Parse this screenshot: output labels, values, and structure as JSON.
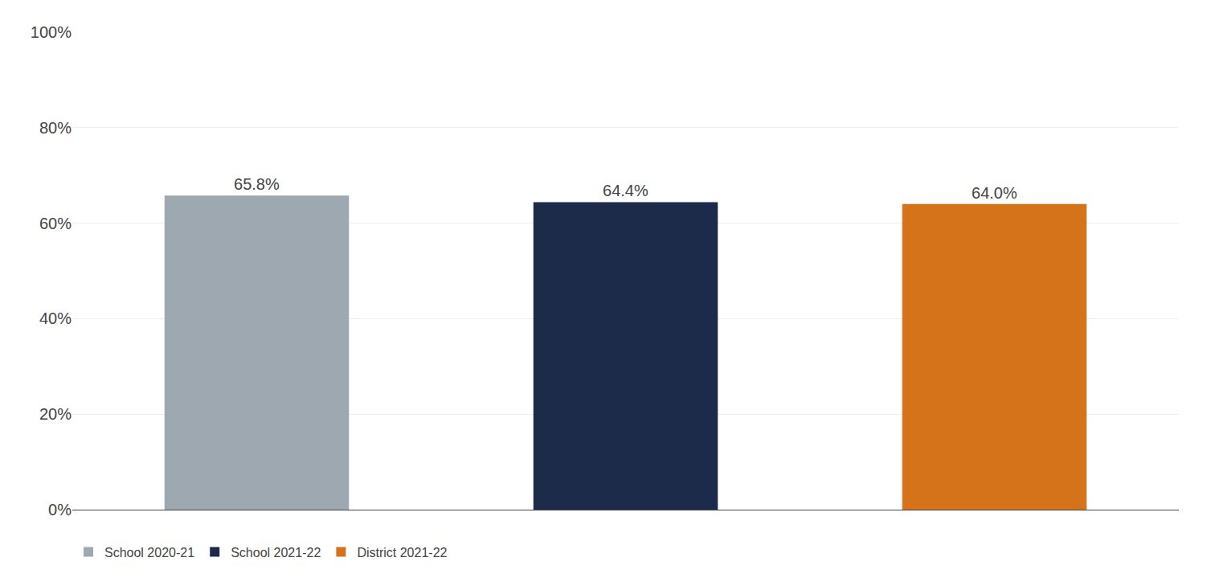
{
  "chart_data": {
    "type": "bar",
    "categories": [
      "School 2020-21",
      "School 2021-22",
      "District 2021-22"
    ],
    "values": [
      0.658,
      0.644,
      0.64
    ],
    "value_labels": [
      "65.8%",
      "64.4%",
      "64.0%"
    ],
    "colors": [
      "#9EA8B0",
      "#1C2B4A",
      "#D4731A"
    ],
    "data_labels": true,
    "ylim": [
      0,
      1.0
    ],
    "yticks": [
      {
        "value": 0.0,
        "label": "0%"
      },
      {
        "value": 0.2,
        "label": "20%"
      },
      {
        "value": 0.4,
        "label": "40%"
      },
      {
        "value": 0.6,
        "label": "60%"
      },
      {
        "value": 0.8,
        "label": "80%"
      },
      {
        "value": 1.0,
        "label": "100%"
      }
    ],
    "grid": true,
    "legend": "bottom",
    "tick_labels": "y"
  }
}
